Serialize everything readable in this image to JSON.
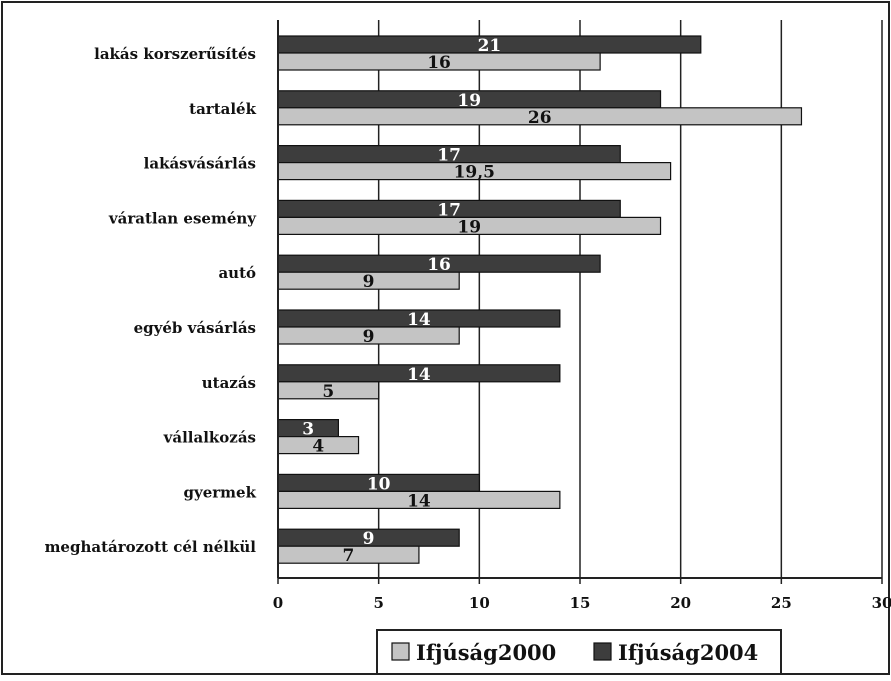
{
  "chart_data": {
    "type": "bar",
    "orientation": "horizontal",
    "categories": [
      "lakás korszerűsítés",
      "tartalék",
      "lakásvásárlás",
      "váratlan esemény",
      "autó",
      "egyéb vásárlás",
      "utazás",
      "vállalkozás",
      "gyermek",
      "meghatározott cél nélkül"
    ],
    "series": [
      {
        "name": "Ifjúság2004",
        "values": [
          21,
          19,
          17,
          17,
          16,
          14,
          14,
          3,
          10,
          9
        ],
        "color": "#3d3d3d",
        "label_color": "#ffffff"
      },
      {
        "name": "Ifjúság2000",
        "values": [
          16,
          26,
          19.5,
          19,
          9,
          9,
          5,
          4,
          14,
          7
        ],
        "color": "#c4c4c4",
        "label_color": "#111111"
      }
    ],
    "data_labels": [
      [
        "21",
        "19",
        "17",
        "17",
        "16",
        "14",
        "14",
        "3",
        "10",
        "9"
      ],
      [
        "16",
        "26",
        "19,5",
        "19",
        "9",
        "9",
        "5",
        "4",
        "14",
        "7"
      ]
    ],
    "xlim": [
      0,
      30
    ],
    "xticks": [
      "0",
      "5",
      "10",
      "15",
      "20",
      "25",
      "30"
    ],
    "grid": true,
    "legend": [
      "Ifjúság2000",
      "Ifjúság2004"
    ],
    "legend_position": "bottom",
    "title": "",
    "xlabel": "",
    "ylabel": ""
  }
}
